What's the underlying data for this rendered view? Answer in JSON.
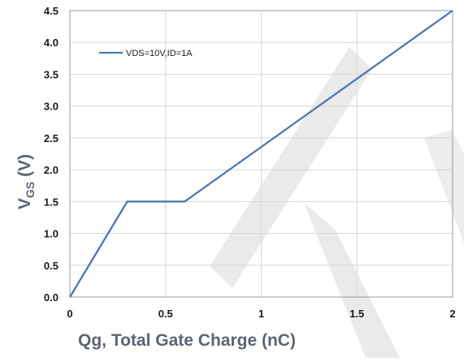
{
  "chart_data": {
    "type": "line",
    "title": "",
    "xlabel": "Qg, Total Gate Charge (nC)",
    "ylabel": {
      "main": "V",
      "subscript": "GS",
      "unit": " (V)"
    },
    "xlim": [
      0,
      2
    ],
    "ylim": [
      0,
      4.5
    ],
    "x_ticks": [
      0,
      0.5,
      1,
      1.5,
      2
    ],
    "x_tick_labels": [
      "0",
      "0.5",
      "1",
      "1.5",
      "2"
    ],
    "y_ticks": [
      0,
      0.5,
      1,
      1.5,
      2,
      2.5,
      3,
      3.5,
      4,
      4.5
    ],
    "y_tick_labels": [
      "0.0",
      "0.5",
      "1.0",
      "1.5",
      "2.0",
      "2.5",
      "3.0",
      "3.5",
      "4.0",
      "4.5"
    ],
    "grid": true,
    "legend_position": "top-left",
    "series": [
      {
        "name": "VDS=10V,ID=1A",
        "color": "#4a78b0",
        "points": [
          {
            "x": 0,
            "y": 0
          },
          {
            "x": 0.3,
            "y": 1.5
          },
          {
            "x": 0.6,
            "y": 1.5
          },
          {
            "x": 2,
            "y": 4.5
          }
        ]
      }
    ],
    "colors": {
      "grid": "#d6d6d6",
      "axis": "#9a9a9a",
      "watermark": "#d9d9d9"
    }
  }
}
